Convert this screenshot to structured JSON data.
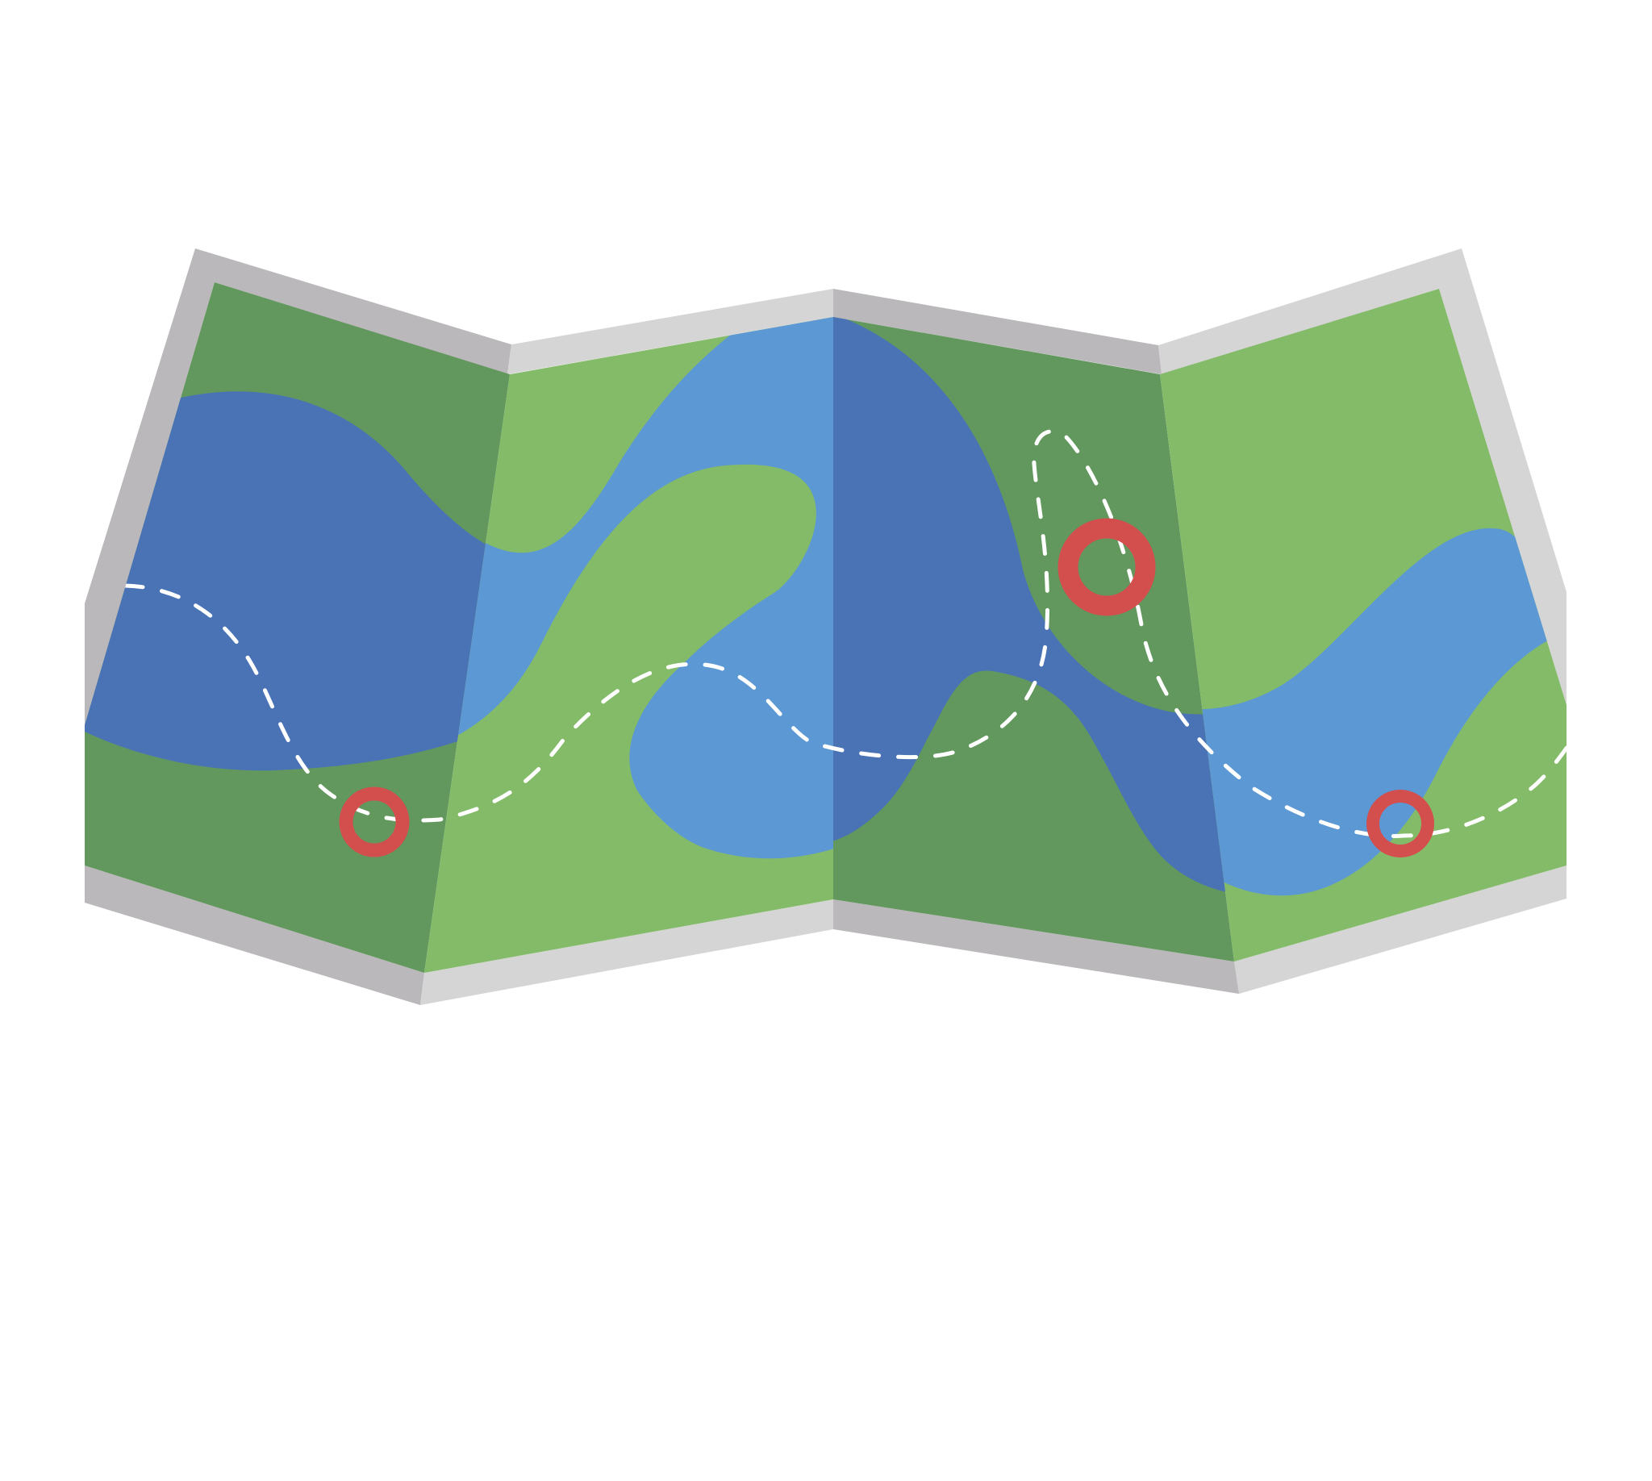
{
  "illustration": {
    "subject": "folded-paper-map",
    "panels": 5,
    "markers": 3,
    "colors": {
      "background": "#ffffff",
      "frame_dark": "#bab8bb",
      "frame_light": "#d5d5d5",
      "land_dark": "#62985d",
      "land_light": "#84bb69",
      "water_dark": "#4a73b6",
      "water_light": "#5b98d4",
      "route": "#ffffff",
      "marker": "#d24f4e"
    }
  }
}
